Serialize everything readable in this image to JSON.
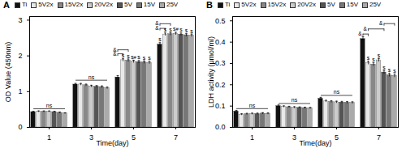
{
  "chart_data": [
    {
      "type": "bar",
      "title": "A",
      "xlabel": "Time(day)",
      "ylabel": "OD Value (450nm)",
      "categories": [
        "1",
        "3",
        "5",
        "7"
      ],
      "series": [
        {
          "name": "Ti",
          "color": "#111111",
          "values": [
            0.43,
            1.2,
            1.4,
            2.32
          ],
          "errors": [
            0.02,
            0.03,
            0.05,
            0.05
          ]
        },
        {
          "name": "5V2x",
          "color": "#e8e8e8",
          "values": [
            0.44,
            1.2,
            1.88,
            2.6
          ],
          "errors": [
            0.02,
            0.03,
            0.04,
            0.04
          ]
        },
        {
          "name": "15V2x",
          "color": "#888888",
          "values": [
            0.44,
            1.18,
            1.87,
            2.61
          ],
          "errors": [
            0.02,
            0.03,
            0.04,
            0.04
          ]
        },
        {
          "name": "20V2x",
          "color": "#cccccc",
          "values": [
            0.44,
            1.15,
            1.84,
            2.62
          ],
          "errors": [
            0.02,
            0.03,
            0.04,
            0.04
          ]
        },
        {
          "name": "5V",
          "color": "#555555",
          "values": [
            0.43,
            1.14,
            1.83,
            2.6
          ],
          "errors": [
            0.02,
            0.03,
            0.04,
            0.04
          ]
        },
        {
          "name": "15V",
          "color": "#777777",
          "values": [
            0.41,
            1.13,
            1.82,
            2.58
          ],
          "errors": [
            0.02,
            0.03,
            0.04,
            0.04
          ]
        },
        {
          "name": "25V",
          "color": "#aaaaaa",
          "values": [
            0.39,
            1.1,
            1.81,
            2.57
          ],
          "errors": [
            0.02,
            0.03,
            0.04,
            0.04
          ]
        }
      ],
      "ylim": [
        0,
        3.1
      ],
      "yticks": [
        0,
        1,
        2,
        3
      ],
      "grid": false,
      "legend": "upper left",
      "annotations": [
        {
          "text": "ns",
          "category": "1",
          "from": "Ti",
          "to": "25V",
          "y": 0.52
        },
        {
          "text": "ns",
          "category": "3",
          "from": "Ti",
          "to": "25V",
          "y": 1.32
        },
        {
          "text": "&",
          "category": "5",
          "from": "Ti",
          "to": "5V2x",
          "y": 2.06
        },
        {
          "text": "&",
          "category": "5",
          "from": "Ti",
          "to": "15V2x",
          "y": 2.17
        },
        {
          "text": "$",
          "category": "5",
          "series": "5V2x"
        },
        {
          "text": "$",
          "category": "5",
          "series": "15V2x"
        },
        {
          "text": "$#",
          "category": "5",
          "series": "20V2x"
        },
        {
          "text": "$",
          "category": "5",
          "series": "5V"
        },
        {
          "text": "$",
          "category": "5",
          "series": "15V"
        },
        {
          "text": "$",
          "category": "5",
          "series": "25V"
        },
        {
          "text": "&",
          "category": "7",
          "from": "Ti",
          "to": "5V2x",
          "y": 2.77
        },
        {
          "text": "&",
          "category": "7",
          "from": "Ti",
          "to": "15V2x",
          "y": 2.9
        },
        {
          "text": "$",
          "category": "7",
          "series": "Ti"
        },
        {
          "text": "$",
          "category": "7",
          "series": "5V2x"
        },
        {
          "text": "$",
          "category": "7",
          "series": "15V2x"
        },
        {
          "text": "$#",
          "category": "7",
          "series": "20V2x"
        },
        {
          "text": "$",
          "category": "7",
          "series": "5V"
        },
        {
          "text": "$",
          "category": "7",
          "series": "15V"
        },
        {
          "text": "$",
          "category": "7",
          "series": "25V"
        }
      ]
    },
    {
      "type": "bar",
      "title": "B",
      "xlabel": "Time(day)",
      "ylabel": "LDH activity (μmol/ml)",
      "categories": [
        "1",
        "3",
        "5",
        "7"
      ],
      "series": [
        {
          "name": "Ti",
          "color": "#111111",
          "values": [
            0.075,
            0.1,
            0.135,
            0.415
          ],
          "errors": [
            0.005,
            0.005,
            0.006,
            0.01
          ]
        },
        {
          "name": "5V2x",
          "color": "#e8e8e8",
          "values": [
            0.06,
            0.097,
            0.122,
            0.302
          ],
          "errors": [
            0.004,
            0.004,
            0.005,
            0.008
          ]
        },
        {
          "name": "15V2x",
          "color": "#888888",
          "values": [
            0.062,
            0.095,
            0.12,
            0.295
          ],
          "errors": [
            0.004,
            0.004,
            0.005,
            0.008
          ]
        },
        {
          "name": "20V2x",
          "color": "#cccccc",
          "values": [
            0.063,
            0.093,
            0.118,
            0.315
          ],
          "errors": [
            0.004,
            0.004,
            0.005,
            0.008
          ]
        },
        {
          "name": "5V",
          "color": "#555555",
          "values": [
            0.063,
            0.092,
            0.117,
            0.258
          ],
          "errors": [
            0.004,
            0.004,
            0.005,
            0.008
          ]
        },
        {
          "name": "15V",
          "color": "#777777",
          "values": [
            0.065,
            0.091,
            0.116,
            0.245
          ],
          "errors": [
            0.004,
            0.004,
            0.005,
            0.008
          ]
        },
        {
          "name": "25V",
          "color": "#aaaaaa",
          "values": [
            0.064,
            0.09,
            0.115,
            0.242
          ],
          "errors": [
            0.004,
            0.004,
            0.005,
            0.008
          ]
        }
      ],
      "ylim": [
        0,
        0.52
      ],
      "yticks": [
        {
          "value": 0,
          "label": "0.0"
        },
        0.1,
        0.2,
        0.3,
        0.4,
        0.5
      ],
      "grid": false,
      "legend": "upper left",
      "annotations": [
        {
          "text": "ns",
          "category": "1",
          "from": "Ti",
          "to": "25V",
          "y": 0.088
        },
        {
          "text": "ns",
          "category": "3",
          "from": "Ti",
          "to": "25V",
          "y": 0.112
        },
        {
          "text": "ns",
          "category": "5",
          "from": "Ti",
          "to": "25V",
          "y": 0.15
        },
        {
          "text": "&",
          "category": "7",
          "from": "Ti",
          "to": "5V2x",
          "y": 0.438
        },
        {
          "text": "&",
          "category": "7",
          "from": "5V2x",
          "to": "5V",
          "y": 0.462
        },
        {
          "text": "&",
          "category": "7",
          "from": "5V",
          "to": "25V",
          "y": 0.487
        },
        {
          "text": "$",
          "category": "7",
          "series": "5V2x"
        },
        {
          "text": "$",
          "category": "7",
          "series": "15V2x"
        },
        {
          "text": "$",
          "category": "7",
          "series": "20V2x"
        },
        {
          "text": "$",
          "category": "7",
          "series": "5V"
        },
        {
          "text": "$",
          "category": "7",
          "series": "15V"
        },
        {
          "text": "$",
          "category": "7",
          "series": "25V"
        }
      ]
    }
  ]
}
